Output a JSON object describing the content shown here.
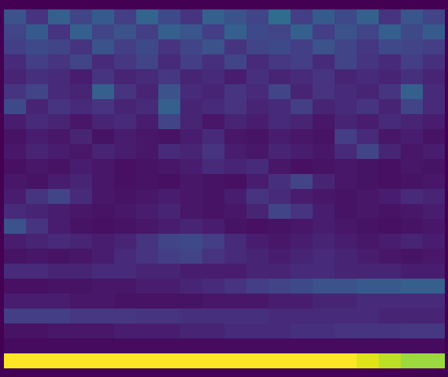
{
  "chart_data": {
    "type": "heatmap",
    "tick_labels": false,
    "zlim": [
      0,
      1
    ],
    "cells": [
      [
        0.25,
        0.15,
        0.3,
        0.2,
        0.28,
        0.18,
        0.32,
        0.22,
        0.15,
        0.3,
        0.25,
        0.2,
        0.35,
        0.18,
        0.28,
        0.22,
        0.3,
        0.15,
        0.26,
        0.2
      ],
      [
        0.2,
        0.28,
        0.15,
        0.3,
        0.2,
        0.25,
        0.18,
        0.3,
        0.26,
        0.18,
        0.3,
        0.22,
        0.2,
        0.3,
        0.18,
        0.25,
        0.2,
        0.3,
        0.22,
        0.28
      ],
      [
        0.18,
        0.22,
        0.2,
        0.15,
        0.25,
        0.18,
        0.22,
        0.15,
        0.2,
        0.25,
        0.15,
        0.2,
        0.22,
        0.18,
        0.25,
        0.2,
        0.16,
        0.22,
        0.2,
        0.18
      ],
      [
        0.12,
        0.18,
        0.15,
        0.2,
        0.12,
        0.16,
        0.2,
        0.12,
        0.18,
        0.14,
        0.2,
        0.12,
        0.16,
        0.18,
        0.12,
        0.2,
        0.15,
        0.12,
        0.18,
        0.14
      ],
      [
        0.1,
        0.14,
        0.12,
        0.08,
        0.15,
        0.1,
        0.12,
        0.16,
        0.1,
        0.12,
        0.08,
        0.14,
        0.1,
        0.12,
        0.15,
        0.1,
        0.12,
        0.1,
        0.14,
        0.1
      ],
      [
        0.15,
        0.2,
        0.12,
        0.1,
        0.3,
        0.15,
        0.1,
        0.25,
        0.12,
        0.1,
        0.15,
        0.12,
        0.2,
        0.1,
        0.15,
        0.12,
        0.1,
        0.15,
        0.3,
        0.12
      ],
      [
        0.22,
        0.1,
        0.15,
        0.12,
        0.15,
        0.1,
        0.12,
        0.3,
        0.1,
        0.12,
        0.15,
        0.1,
        0.12,
        0.18,
        0.1,
        0.12,
        0.15,
        0.1,
        0.2,
        0.12
      ],
      [
        0.08,
        0.12,
        0.1,
        0.06,
        0.1,
        0.12,
        0.08,
        0.2,
        0.1,
        0.06,
        0.1,
        0.08,
        0.12,
        0.1,
        0.06,
        0.1,
        0.08,
        0.12,
        0.1,
        0.08
      ],
      [
        0.05,
        0.08,
        0.06,
        0.1,
        0.05,
        0.08,
        0.06,
        0.05,
        0.08,
        0.12,
        0.06,
        0.05,
        0.08,
        0.06,
        0.05,
        0.18,
        0.12,
        0.06,
        0.08,
        0.05
      ],
      [
        0.06,
        0.1,
        0.08,
        0.06,
        0.1,
        0.08,
        0.06,
        0.12,
        0.1,
        0.15,
        0.08,
        0.06,
        0.1,
        0.08,
        0.06,
        0.12,
        0.2,
        0.1,
        0.06,
        0.08
      ],
      [
        0.04,
        0.06,
        0.05,
        0.08,
        0.06,
        0.04,
        0.05,
        0.06,
        0.08,
        0.12,
        0.1,
        0.12,
        0.06,
        0.04,
        0.05,
        0.06,
        0.05,
        0.04,
        0.06,
        0.05
      ],
      [
        0.06,
        0.05,
        0.08,
        0.1,
        0.06,
        0.04,
        0.05,
        0.04,
        0.06,
        0.05,
        0.04,
        0.08,
        0.14,
        0.2,
        0.1,
        0.06,
        0.05,
        0.04,
        0.05,
        0.06
      ],
      [
        0.08,
        0.15,
        0.2,
        0.12,
        0.06,
        0.05,
        0.06,
        0.08,
        0.06,
        0.05,
        0.08,
        0.15,
        0.12,
        0.08,
        0.06,
        0.05,
        0.06,
        0.08,
        0.12,
        0.1
      ],
      [
        0.12,
        0.1,
        0.08,
        0.06,
        0.05,
        0.06,
        0.08,
        0.1,
        0.06,
        0.05,
        0.06,
        0.1,
        0.2,
        0.15,
        0.08,
        0.05,
        0.06,
        0.05,
        0.06,
        0.08
      ],
      [
        0.25,
        0.15,
        0.08,
        0.05,
        0.04,
        0.05,
        0.06,
        0.08,
        0.1,
        0.08,
        0.05,
        0.04,
        0.05,
        0.06,
        0.08,
        0.06,
        0.05,
        0.04,
        0.05,
        0.06
      ],
      [
        0.08,
        0.1,
        0.12,
        0.1,
        0.08,
        0.1,
        0.15,
        0.2,
        0.22,
        0.18,
        0.12,
        0.08,
        0.06,
        0.08,
        0.1,
        0.08,
        0.06,
        0.08,
        0.1,
        0.08
      ],
      [
        0.05,
        0.06,
        0.05,
        0.06,
        0.08,
        0.12,
        0.15,
        0.18,
        0.2,
        0.15,
        0.12,
        0.1,
        0.08,
        0.1,
        0.12,
        0.1,
        0.08,
        0.06,
        0.05,
        0.06
      ],
      [
        0.12,
        0.12,
        0.1,
        0.1,
        0.12,
        0.12,
        0.1,
        0.1,
        0.08,
        0.08,
        0.08,
        0.1,
        0.1,
        0.12,
        0.12,
        0.1,
        0.1,
        0.1,
        0.08,
        0.08
      ],
      [
        0.04,
        0.04,
        0.05,
        0.05,
        0.06,
        0.06,
        0.08,
        0.08,
        0.1,
        0.12,
        0.15,
        0.18,
        0.2,
        0.22,
        0.25,
        0.25,
        0.28,
        0.28,
        0.3,
        0.3
      ],
      [
        0.08,
        0.08,
        0.08,
        0.06,
        0.06,
        0.05,
        0.05,
        0.05,
        0.05,
        0.06,
        0.06,
        0.06,
        0.08,
        0.08,
        0.1,
        0.1,
        0.12,
        0.12,
        0.12,
        0.12
      ],
      [
        0.18,
        0.18,
        0.18,
        0.16,
        0.16,
        0.16,
        0.15,
        0.15,
        0.14,
        0.14,
        0.14,
        0.14,
        0.12,
        0.12,
        0.12,
        0.12,
        0.12,
        0.1,
        0.1,
        0.1
      ],
      [
        0.05,
        0.05,
        0.06,
        0.06,
        0.06,
        0.08,
        0.08,
        0.08,
        0.1,
        0.1,
        0.12,
        0.12,
        0.12,
        0.14,
        0.14,
        0.15,
        0.15,
        0.15,
        0.16,
        0.16
      ],
      [
        0.03,
        0.03,
        0.03,
        0.03,
        0.03,
        0.03,
        0.03,
        0.03,
        0.03,
        0.03,
        0.03,
        0.03,
        0.03,
        0.03,
        0.03,
        0.03,
        0.03,
        0.03,
        0.03,
        0.03
      ],
      [
        1,
        1,
        1,
        1,
        1,
        1,
        1,
        1,
        1,
        1,
        1,
        1,
        1,
        1,
        1,
        1,
        0.95,
        0.9,
        0.85,
        0.85
      ]
    ]
  }
}
